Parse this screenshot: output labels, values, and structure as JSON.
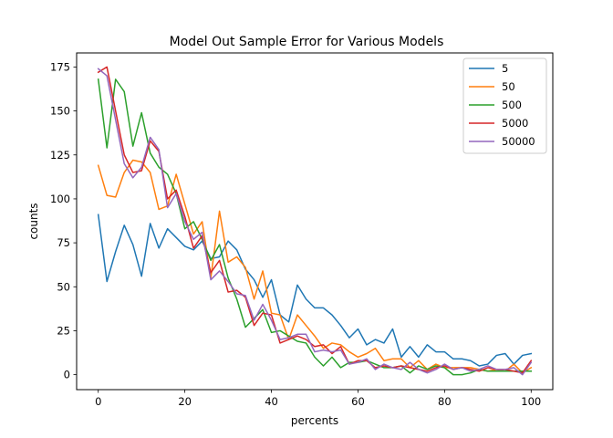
{
  "chart_data": {
    "type": "line",
    "title": "Model Out Sample Error for Various Models",
    "xlabel": "percents",
    "ylabel": "counts",
    "xlim": [
      -5,
      105
    ],
    "ylim": [
      -8.5,
      183
    ],
    "xticks": [
      0,
      20,
      40,
      60,
      80,
      100
    ],
    "yticks": [
      0,
      25,
      50,
      75,
      100,
      125,
      150,
      175
    ],
    "legend_position": "top-right",
    "grid": false,
    "x": [
      0,
      2,
      4,
      6,
      8,
      10,
      12,
      14,
      16,
      18,
      20,
      22,
      24,
      26,
      28,
      30,
      32,
      34,
      36,
      38,
      40,
      42,
      44,
      46,
      48,
      50,
      52,
      54,
      56,
      58,
      60,
      62,
      64,
      66,
      68,
      70,
      72,
      74,
      76,
      78,
      80,
      82,
      84,
      86,
      88,
      90,
      92,
      94,
      96,
      98,
      100
    ],
    "series": [
      {
        "name": "5",
        "color": "#1f77b4",
        "values": [
          91,
          53,
          70,
          85,
          74,
          56,
          86,
          72,
          83,
          78,
          73,
          71,
          76,
          66,
          67,
          76,
          71,
          60,
          54,
          44,
          54,
          34,
          30,
          51,
          43,
          38,
          38,
          34,
          28,
          21,
          26,
          17,
          20,
          18,
          26,
          10,
          16,
          10,
          17,
          13,
          13,
          9,
          9,
          8,
          5,
          6,
          11,
          12,
          6,
          11,
          12
        ]
      },
      {
        "name": "50",
        "color": "#ff7f0e",
        "values": [
          119,
          102,
          101,
          115,
          122,
          121,
          115,
          94,
          96,
          114,
          97,
          80,
          87,
          55,
          93,
          64,
          67,
          61,
          43,
          59,
          35,
          34,
          20,
          34,
          28,
          22,
          15,
          18,
          17,
          13,
          10,
          12,
          15,
          8,
          9,
          9,
          4,
          8,
          3,
          6,
          4,
          4,
          4,
          4,
          3,
          2,
          3,
          2,
          6,
          1,
          4
        ]
      },
      {
        "name": "500",
        "color": "#2ca02c",
        "values": [
          168,
          129,
          168,
          161,
          130,
          149,
          126,
          118,
          114,
          103,
          83,
          87,
          77,
          65,
          74,
          55,
          43,
          27,
          32,
          37,
          24,
          25,
          22,
          19,
          18,
          10,
          5,
          10,
          4,
          7,
          7,
          8,
          6,
          4,
          4,
          5,
          1,
          5,
          3,
          5,
          4,
          0,
          0,
          1,
          3,
          2,
          2,
          2,
          2,
          2,
          2
        ]
      },
      {
        "name": "5000",
        "color": "#d62728",
        "values": [
          172,
          175,
          150,
          125,
          115,
          116,
          133,
          127,
          100,
          105,
          90,
          72,
          79,
          58,
          65,
          47,
          48,
          44,
          28,
          35,
          34,
          18,
          20,
          22,
          20,
          16,
          17,
          12,
          16,
          6,
          8,
          8,
          4,
          5,
          4,
          5,
          4,
          3,
          2,
          4,
          5,
          3,
          4,
          3,
          2,
          4,
          3,
          3,
          2,
          1,
          8
        ]
      },
      {
        "name": "50000",
        "color": "#9467bd",
        "values": [
          174,
          170,
          145,
          120,
          112,
          118,
          135,
          128,
          95,
          103,
          87,
          77,
          81,
          54,
          59,
          53,
          46,
          45,
          31,
          40,
          31,
          20,
          21,
          23,
          23,
          13,
          14,
          13,
          14,
          6,
          7,
          9,
          3,
          6,
          4,
          3,
          7,
          3,
          1,
          3,
          6,
          3,
          4,
          2,
          3,
          5,
          3,
          3,
          4,
          0,
          7
        ]
      }
    ]
  }
}
